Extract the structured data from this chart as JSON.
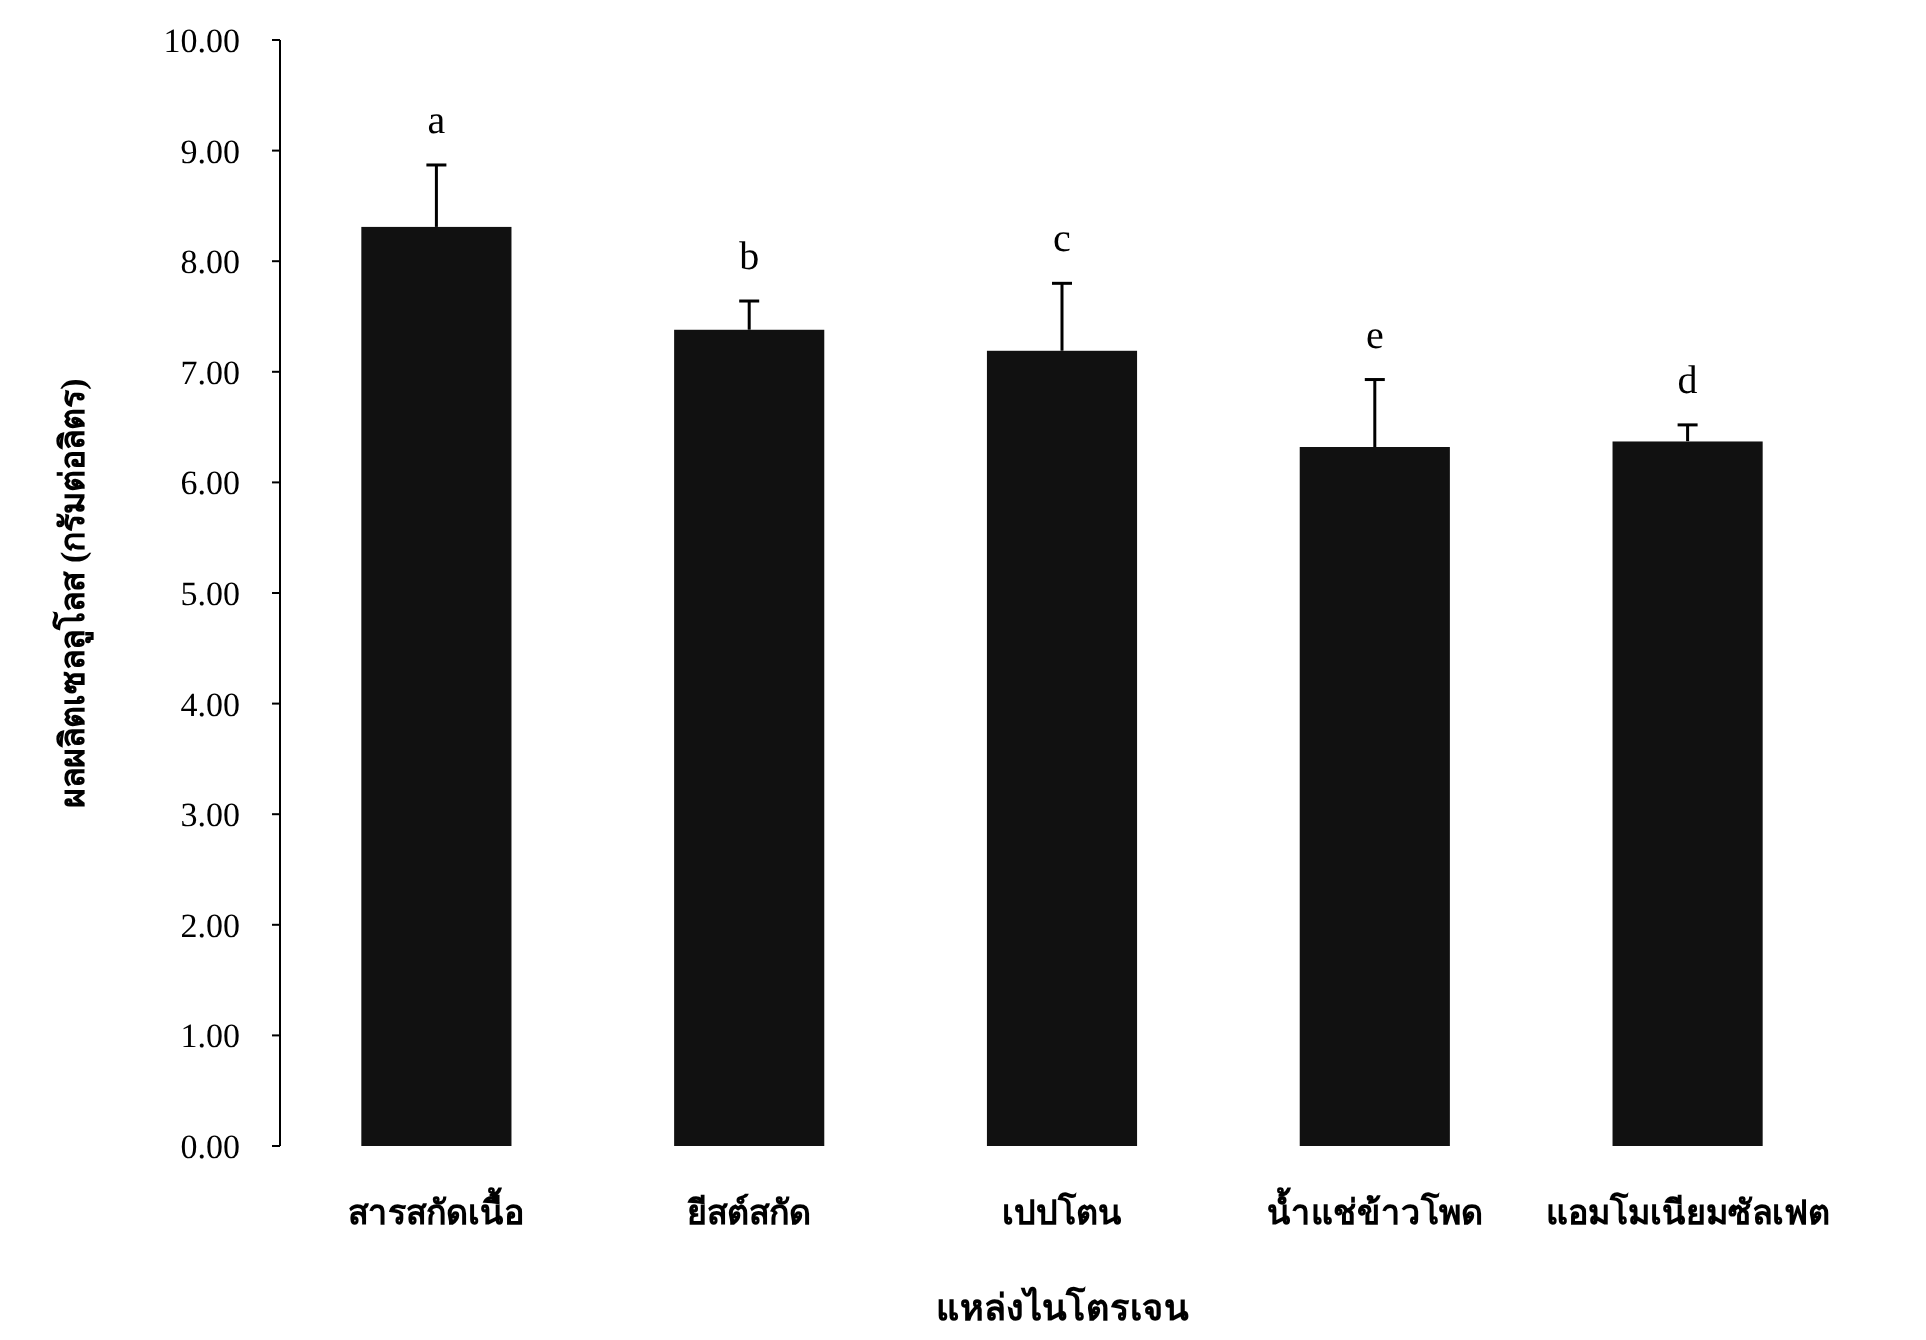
{
  "chart_data": {
    "type": "bar",
    "xlabel": "แหล่งไนโตรเจน",
    "ylabel": "ผลผลิตเซลลูโลส (กรัมต่อลิตร)",
    "categories": [
      "สารสกัดเนื้อ",
      "ยีสต์สกัด",
      "เปปโตน",
      "น้ำแช่ข้าวโพด",
      "แอมโมเนียมซัลเฟต"
    ],
    "values": [
      8.31,
      7.38,
      7.19,
      6.32,
      6.37
    ],
    "errors": [
      [
        8.31,
        8.87
      ],
      [
        7.38,
        7.64
      ],
      [
        7.19,
        7.8
      ],
      [
        6.32,
        6.93
      ],
      [
        6.37,
        6.52
      ]
    ],
    "color": "#111111",
    "ylim": [
      0,
      10
    ],
    "yticks": [
      {
        "value": 0,
        "label": "0.00"
      },
      {
        "value": 1,
        "label": "1.00"
      },
      {
        "value": 2,
        "label": "2.00"
      },
      {
        "value": 3,
        "label": "3.00"
      },
      {
        "value": 4,
        "label": "4.00"
      },
      {
        "value": 5,
        "label": "5.00"
      },
      {
        "value": 6,
        "label": "6.00"
      },
      {
        "value": 7,
        "label": "7.00"
      },
      {
        "value": 8,
        "label": "8.00"
      },
      {
        "value": 9,
        "label": "9.00"
      },
      {
        "value": 10,
        "label": "10.00"
      }
    ],
    "annotations": [
      {
        "text": "a",
        "x": "สารสกัดเนื้อ",
        "y": 8.87
      },
      {
        "text": "b",
        "x": "ยีสต์สกัด",
        "y": 7.64
      },
      {
        "text": "c",
        "x": "เปปโตน",
        "y": 7.8
      },
      {
        "text": "e",
        "x": "น้ำแช่ข้าวโพด",
        "y": 6.93
      },
      {
        "text": "d",
        "x": "แอมโมเนียมซัลเฟต",
        "y": 6.52
      }
    ],
    "grid": false
  }
}
